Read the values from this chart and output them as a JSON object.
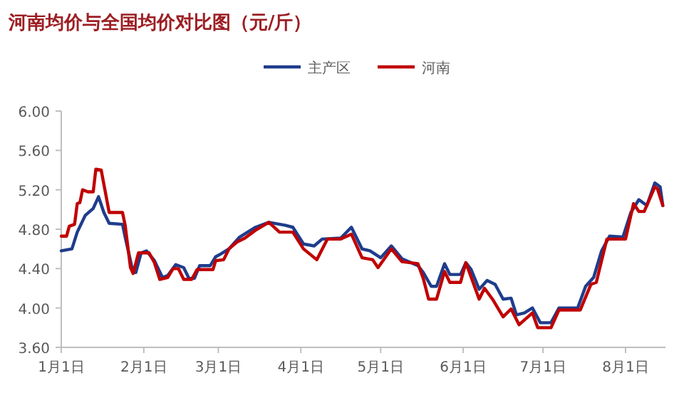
{
  "chart_data": {
    "type": "line",
    "title": "河南均价与全国均价对比图（元/斤）",
    "xlim": [
      "--01-01",
      "--08-16"
    ],
    "xticks": [
      {
        "value": "--01-01",
        "label": "1月1日"
      },
      {
        "value": "--02-01",
        "label": "2月1日"
      },
      {
        "value": "--03-01",
        "label": "3月1日"
      },
      {
        "value": "--04-01",
        "label": "4月1日"
      },
      {
        "value": "--05-01",
        "label": "5月1日"
      },
      {
        "value": "--06-01",
        "label": "6月1日"
      },
      {
        "value": "--07-01",
        "label": "7月1日"
      },
      {
        "value": "--08-01",
        "label": "8月1日"
      }
    ],
    "ylim": [
      3.6,
      6.0
    ],
    "yticks": [
      {
        "value": 3.6,
        "label": "3.60"
      },
      {
        "value": 4.0,
        "label": "4.00"
      },
      {
        "value": 4.4,
        "label": "4.40"
      },
      {
        "value": 4.8,
        "label": "4.80"
      },
      {
        "value": 5.2,
        "label": "5.20"
      },
      {
        "value": 5.6,
        "label": "5.60"
      },
      {
        "value": 6.0,
        "label": "6.00"
      }
    ],
    "grid": false,
    "legend": "top",
    "marker": "none",
    "line_style": "solid",
    "series": [
      {
        "name": "主产区",
        "color": "#1f3d8c",
        "x": [
          "--01-01",
          "--01-05",
          "--01-07",
          "--01-10",
          "--01-13",
          "--01-15",
          "--01-17",
          "--01-19",
          "--01-24",
          "--01-25",
          "--01-28",
          "--01-29",
          "--01-31",
          "--02-02",
          "--02-05",
          "--02-08",
          "--02-10",
          "--02-13",
          "--02-16",
          "--02-18",
          "--02-20",
          "--02-22",
          "--02-26",
          "--02-28",
          "--03-02",
          "--03-05",
          "--03-09",
          "--03-15",
          "--03-20",
          "--03-26",
          "--03-29",
          "--04-02",
          "--04-06",
          "--04-09",
          "--04-16",
          "--04-20",
          "--04-24",
          "--04-27",
          "--05-01",
          "--05-05",
          "--05-09",
          "--05-15",
          "--05-17",
          "--05-20",
          "--05-22",
          "--05-25",
          "--05-27",
          "--05-31",
          "--06-02",
          "--06-04",
          "--06-07",
          "--06-10",
          "--06-13",
          "--06-16",
          "--06-19",
          "--06-21",
          "--06-24",
          "--06-27",
          "--06-30",
          "--07-04",
          "--07-07",
          "--07-14",
          "--07-17",
          "--07-20",
          "--07-23",
          "--07-26",
          "--07-31",
          "--08-03",
          "--08-06",
          "--08-09",
          "--08-12",
          "--08-14",
          "--08-15"
        ],
        "values": [
          4.58,
          4.6,
          4.77,
          4.94,
          5.01,
          5.13,
          4.97,
          4.86,
          4.85,
          4.72,
          4.36,
          4.36,
          4.56,
          4.58,
          4.48,
          4.31,
          4.33,
          4.44,
          4.41,
          4.3,
          4.3,
          4.43,
          4.43,
          4.52,
          4.55,
          4.6,
          4.72,
          4.82,
          4.87,
          4.84,
          4.82,
          4.65,
          4.63,
          4.7,
          4.71,
          4.82,
          4.6,
          4.58,
          4.51,
          4.63,
          4.5,
          4.43,
          4.36,
          4.22,
          4.22,
          4.45,
          4.34,
          4.34,
          4.46,
          4.39,
          4.19,
          4.28,
          4.24,
          4.09,
          4.1,
          3.93,
          3.95,
          4.0,
          3.85,
          3.85,
          4.0,
          4.0,
          4.22,
          4.31,
          4.58,
          4.73,
          4.72,
          4.97,
          5.1,
          5.04,
          5.27,
          5.23,
          5.04
        ]
      },
      {
        "name": "河南",
        "color": "#c00000",
        "x": [
          "--01-01",
          "--01-03",
          "--01-04",
          "--01-06",
          "--01-07",
          "--01-08",
          "--01-09",
          "--01-11",
          "--01-13",
          "--01-14",
          "--01-16",
          "--01-19",
          "--01-24",
          "--01-25",
          "--01-27",
          "--01-28",
          "--01-30",
          "--02-03",
          "--02-05",
          "--02-07",
          "--02-10",
          "--02-12",
          "--02-14",
          "--02-16",
          "--02-19",
          "--02-21",
          "--02-27",
          "--02-28",
          "--03-03",
          "--03-05",
          "--03-08",
          "--03-11",
          "--03-15",
          "--03-20",
          "--03-24",
          "--03-29",
          "--04-02",
          "--04-07",
          "--04-11",
          "--04-16",
          "--04-20",
          "--04-24",
          "--04-28",
          "--04-30",
          "--05-05",
          "--05-09",
          "--05-15",
          "--05-17",
          "--05-19",
          "--05-22",
          "--05-25",
          "--05-27",
          "--05-31",
          "--06-02",
          "--06-07",
          "--06-09",
          "--06-12",
          "--06-16",
          "--06-19",
          "--06-22",
          "--06-27",
          "--06-29",
          "--07-04",
          "--07-07",
          "--07-15",
          "--07-19",
          "--07-21",
          "--07-25",
          "--08-01",
          "--08-04",
          "--08-06",
          "--08-08",
          "--08-12",
          "--08-13",
          "--08-15"
        ],
        "values": [
          4.73,
          4.73,
          4.83,
          4.85,
          5.06,
          5.07,
          5.2,
          5.18,
          5.18,
          5.41,
          5.4,
          4.97,
          4.97,
          4.84,
          4.41,
          4.35,
          4.56,
          4.56,
          4.46,
          4.29,
          4.31,
          4.4,
          4.4,
          4.29,
          4.29,
          4.39,
          4.39,
          4.48,
          4.49,
          4.6,
          4.67,
          4.71,
          4.79,
          4.87,
          4.77,
          4.77,
          4.6,
          4.49,
          4.7,
          4.7,
          4.75,
          4.51,
          4.49,
          4.41,
          4.6,
          4.47,
          4.45,
          4.3,
          4.09,
          4.09,
          4.37,
          4.26,
          4.26,
          4.46,
          4.09,
          4.2,
          4.09,
          3.91,
          3.99,
          3.83,
          3.95,
          3.8,
          3.8,
          3.98,
          3.98,
          4.24,
          4.26,
          4.7,
          4.7,
          5.06,
          4.98,
          4.98,
          5.23,
          5.21,
          5.04
        ]
      }
    ]
  }
}
